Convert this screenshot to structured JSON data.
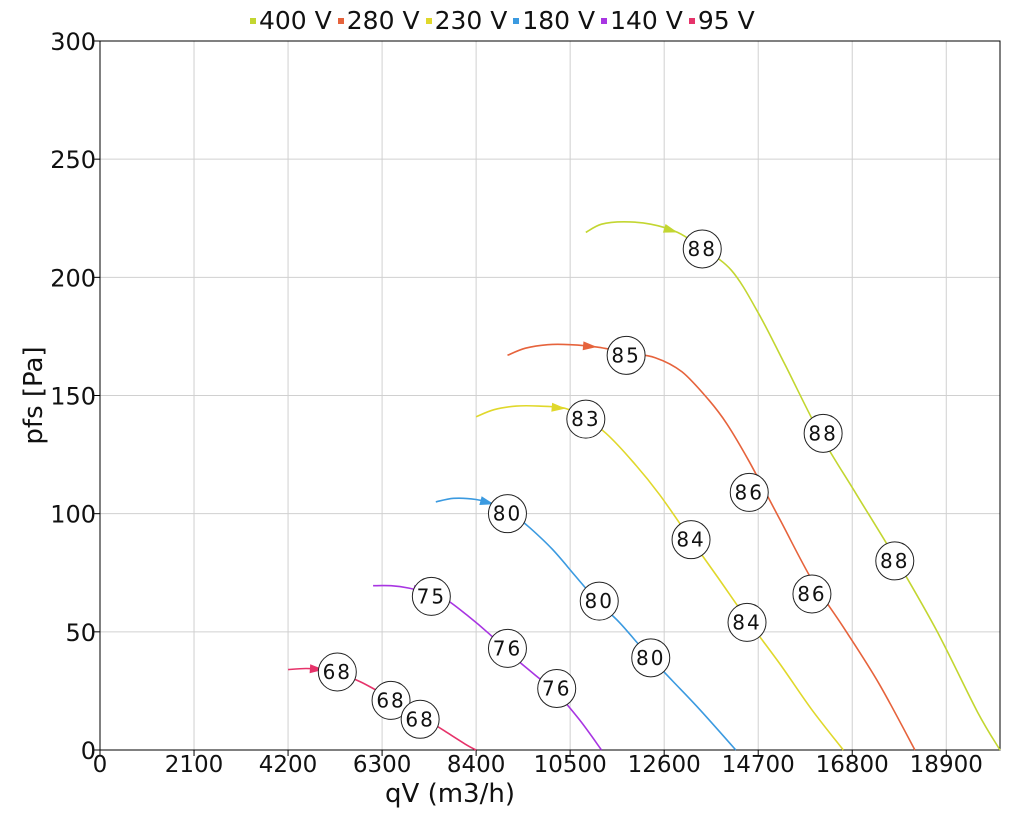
{
  "chart_data": {
    "type": "line",
    "title": "",
    "xlabel": "qV (m3/h)",
    "ylabel": "pfs [Pa]",
    "xlim": [
      0,
      20100
    ],
    "ylim": [
      0,
      300
    ],
    "x_ticks": [
      "0",
      "2100",
      "4200",
      "6300",
      "8400",
      "10500",
      "12600",
      "14700",
      "16800",
      "18900"
    ],
    "y_ticks": [
      "0",
      "50",
      "100",
      "150",
      "200",
      "250",
      "300"
    ],
    "grid": true,
    "legend_position": "top",
    "series": [
      {
        "name": "400 V",
        "color": "#c3d631",
        "x": [
          10850,
          11200,
          11700,
          12300,
          12900,
          13400,
          14100,
          14700,
          15300,
          16100,
          16900,
          17800,
          18700,
          19600,
          20100
        ],
        "y": [
          219,
          222.5,
          223.5,
          222.5,
          219,
          213,
          203,
          185,
          163,
          133,
          108,
          80,
          50,
          16,
          0
        ],
        "arrow_index": 4,
        "labels": [
          {
            "x": 13450,
            "y": 212,
            "text": "88"
          },
          {
            "x": 16150,
            "y": 134,
            "text": "88"
          },
          {
            "x": 17750,
            "y": 80,
            "text": "88"
          }
        ]
      },
      {
        "name": "280 V",
        "color": "#e6633c",
        "x": [
          9100,
          9500,
          10000,
          10500,
          11100,
          11800,
          12400,
          13000,
          13600,
          14000,
          14500,
          15200,
          15900,
          16600,
          17400,
          18200
        ],
        "y": [
          167,
          170,
          171.5,
          171.5,
          170.5,
          168,
          166,
          160,
          148,
          138,
          122,
          97,
          72,
          52,
          28,
          0
        ],
        "arrow_index": 4,
        "labels": [
          {
            "x": 11750,
            "y": 167,
            "text": "85"
          },
          {
            "x": 14500,
            "y": 109,
            "text": "86"
          },
          {
            "x": 15900,
            "y": 66,
            "text": "86"
          }
        ]
      },
      {
        "name": "230 V",
        "color": "#e0d82b",
        "x": [
          8400,
          8800,
          9300,
          9800,
          10400,
          10850,
          11300,
          11900,
          12500,
          13200,
          13800,
          14500,
          15200,
          15900,
          16600
        ],
        "y": [
          141,
          144,
          145.5,
          145.5,
          144.5,
          140,
          134,
          122,
          108,
          89,
          73,
          54,
          36,
          17,
          0
        ],
        "arrow_index": 4,
        "labels": [
          {
            "x": 10850,
            "y": 140,
            "text": "83"
          },
          {
            "x": 13200,
            "y": 89,
            "text": "84"
          },
          {
            "x": 14450,
            "y": 54,
            "text": "84"
          }
        ]
      },
      {
        "name": "180 V",
        "color": "#3b9ae0",
        "x": [
          7500,
          7900,
          8400,
          8800,
          9200,
          9600,
          10100,
          10600,
          11100,
          11600,
          12200,
          12800,
          13400,
          14200
        ],
        "y": [
          105,
          106.5,
          106,
          104,
          100,
          94,
          85,
          74,
          63,
          54,
          41,
          29,
          17,
          0
        ],
        "arrow_index": 3,
        "labels": [
          {
            "x": 9100,
            "y": 100,
            "text": "80"
          },
          {
            "x": 11150,
            "y": 63,
            "text": "80"
          },
          {
            "x": 12300,
            "y": 39,
            "text": "80"
          }
        ]
      },
      {
        "name": "140 V",
        "color": "#a835e2",
        "x": [
          6100,
          6500,
          6900,
          7300,
          7700,
          8200,
          8700,
          9200,
          9700,
          10200,
          10700,
          11200
        ],
        "y": [
          69.5,
          69.5,
          68.5,
          66.5,
          64,
          57,
          49,
          40,
          32,
          24,
          13,
          0
        ],
        "arrow_index": 3,
        "labels": [
          {
            "x": 7400,
            "y": 65,
            "text": "75"
          },
          {
            "x": 9100,
            "y": 43,
            "text": "76"
          },
          {
            "x": 10200,
            "y": 26,
            "text": "76"
          }
        ]
      },
      {
        "name": "95 V",
        "color": "#e6336a",
        "x": [
          4200,
          4600,
          5000,
          5400,
          5800,
          6200,
          6700,
          7200,
          7700,
          8200,
          8400
        ],
        "y": [
          34,
          34.5,
          34,
          32,
          29,
          25,
          20,
          14,
          8,
          2,
          0
        ],
        "arrow_index": 2,
        "labels": [
          {
            "x": 5300,
            "y": 33,
            "text": "68"
          },
          {
            "x": 6500,
            "y": 21,
            "text": "68"
          },
          {
            "x": 7150,
            "y": 13,
            "text": "68"
          }
        ]
      }
    ]
  }
}
